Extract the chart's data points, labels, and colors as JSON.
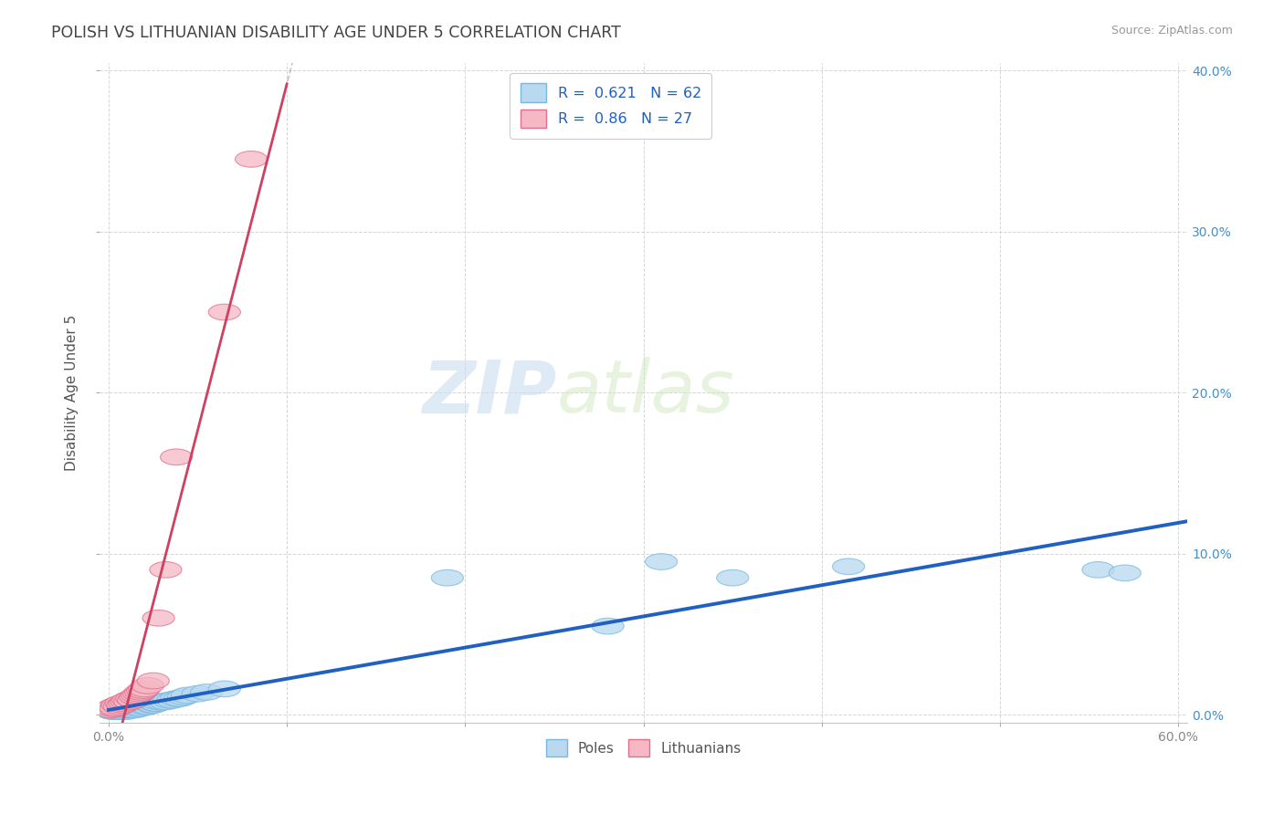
{
  "title": "POLISH VS LITHUANIAN DISABILITY AGE UNDER 5 CORRELATION CHART",
  "source": "Source: ZipAtlas.com",
  "ylabel": "Disability Age Under 5",
  "xlim": [
    -0.005,
    0.605
  ],
  "ylim": [
    -0.005,
    0.405
  ],
  "xticks": [
    0.0,
    0.1,
    0.2,
    0.3,
    0.4,
    0.5,
    0.6
  ],
  "xticklabels": [
    "0.0%",
    "",
    "",
    "",
    "",
    "",
    "60.0%"
  ],
  "yticks": [
    0.0,
    0.1,
    0.2,
    0.3,
    0.4
  ],
  "yticklabels_right": [
    "0.0%",
    "10.0%",
    "20.0%",
    "30.0%",
    "40.0%"
  ],
  "poles_face_color": "#b8d9f0",
  "poles_edge_color": "#7ab8e0",
  "lith_face_color": "#f5b8c4",
  "lith_edge_color": "#e07090",
  "poles_line_color": "#2060c0",
  "lith_line_color": "#d04060",
  "lith_dash_color": "#c8a0a8",
  "R_poles": 0.621,
  "N_poles": 62,
  "R_lith": 0.86,
  "N_lith": 27,
  "watermark_zip": "ZIP",
  "watermark_atlas": "atlas",
  "poles_x": [
    0.001,
    0.002,
    0.003,
    0.003,
    0.004,
    0.004,
    0.005,
    0.005,
    0.005,
    0.006,
    0.006,
    0.006,
    0.007,
    0.007,
    0.008,
    0.008,
    0.009,
    0.009,
    0.01,
    0.01,
    0.01,
    0.011,
    0.011,
    0.012,
    0.012,
    0.013,
    0.013,
    0.014,
    0.014,
    0.015,
    0.015,
    0.016,
    0.017,
    0.018,
    0.019,
    0.02,
    0.021,
    0.022,
    0.023,
    0.024,
    0.025,
    0.026,
    0.027,
    0.028,
    0.03,
    0.032,
    0.034,
    0.036,
    0.038,
    0.04,
    0.042,
    0.044,
    0.05,
    0.055,
    0.065,
    0.19,
    0.28,
    0.31,
    0.35,
    0.415,
    0.555,
    0.57
  ],
  "poles_y": [
    0.003,
    0.002,
    0.002,
    0.004,
    0.003,
    0.005,
    0.002,
    0.003,
    0.004,
    0.002,
    0.003,
    0.005,
    0.002,
    0.004,
    0.003,
    0.005,
    0.003,
    0.004,
    0.002,
    0.003,
    0.004,
    0.003,
    0.005,
    0.003,
    0.004,
    0.003,
    0.005,
    0.004,
    0.006,
    0.003,
    0.005,
    0.004,
    0.005,
    0.004,
    0.006,
    0.005,
    0.006,
    0.005,
    0.007,
    0.006,
    0.006,
    0.007,
    0.007,
    0.008,
    0.008,
    0.008,
    0.009,
    0.009,
    0.01,
    0.01,
    0.011,
    0.012,
    0.013,
    0.014,
    0.016,
    0.085,
    0.055,
    0.095,
    0.085,
    0.092,
    0.09,
    0.088
  ],
  "lith_x": [
    0.001,
    0.002,
    0.003,
    0.004,
    0.005,
    0.006,
    0.007,
    0.008,
    0.009,
    0.01,
    0.011,
    0.012,
    0.013,
    0.014,
    0.015,
    0.016,
    0.017,
    0.018,
    0.019,
    0.02,
    0.022,
    0.025,
    0.028,
    0.032,
    0.038,
    0.065,
    0.08
  ],
  "lith_y": [
    0.003,
    0.004,
    0.005,
    0.004,
    0.006,
    0.005,
    0.007,
    0.006,
    0.007,
    0.008,
    0.009,
    0.008,
    0.01,
    0.009,
    0.011,
    0.012,
    0.013,
    0.014,
    0.015,
    0.016,
    0.018,
    0.021,
    0.06,
    0.09,
    0.16,
    0.25,
    0.345
  ]
}
